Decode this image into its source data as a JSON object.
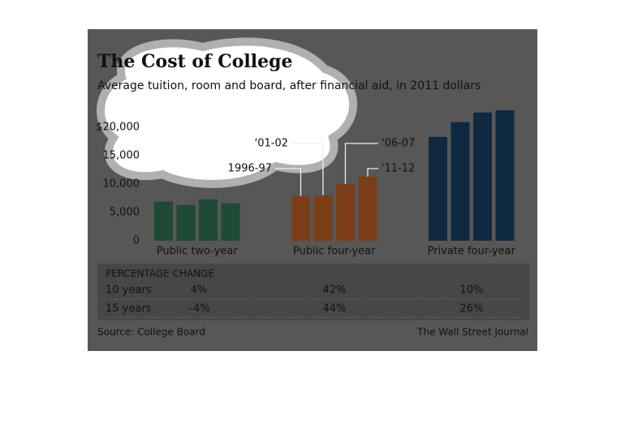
{
  "chart_data": {
    "type": "bar",
    "title": "The Cost of College",
    "subtitle": "Average tuition, room and board, after financial aid, in 2011 dollars",
    "categories": [
      "Public two-year",
      "Public four-year",
      "Private four-year"
    ],
    "colors": [
      "#1f4a33",
      "#7a3d18",
      "#0f2a40"
    ],
    "series": [
      {
        "name": "1996-97",
        "values": [
          6900,
          7900,
          18300
        ]
      },
      {
        "name": "'01-02",
        "values": [
          6300,
          8000,
          20900
        ]
      },
      {
        "name": "'06-07",
        "values": [
          7300,
          10000,
          22600
        ]
      },
      {
        "name": "'11-12",
        "values": [
          6600,
          11300,
          23000
        ]
      }
    ],
    "ylim": [
      0,
      25000
    ],
    "yticks": [
      0,
      {
        "value": 5000,
        "label": "5,000"
      },
      {
        "value": 10000,
        "label": "10,000"
      },
      {
        "value": 15000,
        "label": "15,000"
      },
      {
        "value": 20000,
        "label": "$20,000"
      }
    ],
    "grid": false,
    "table": {
      "header": "PERCENTAGE CHANGE",
      "rows": [
        [
          "10 years",
          "4%",
          "42%",
          "10%"
        ],
        [
          "15 years",
          "–4%",
          "44%",
          "26%"
        ]
      ]
    },
    "source": "Source: College Board",
    "credit": "The Wall Street Journal"
  }
}
